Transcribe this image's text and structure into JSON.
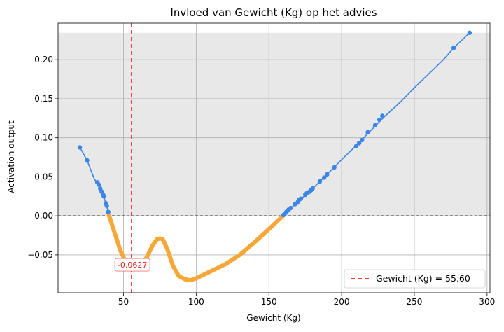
{
  "chart_data": {
    "type": "line",
    "title": "Invloed van Gewicht (Kg) op het advies",
    "xlabel": "Gewicht (Kg)",
    "ylabel": "Activation output",
    "xlim": [
      5,
      302
    ],
    "ylim": [
      -0.0985,
      0.2468
    ],
    "x_ticks": [
      50,
      100,
      150,
      200,
      250,
      300
    ],
    "y_ticks": [
      -0.05,
      0.0,
      0.05,
      0.1,
      0.15,
      0.2
    ],
    "x_tick_labels": [
      "50",
      "100",
      "150",
      "200",
      "250",
      "300"
    ],
    "y_tick_labels": [
      "−0.05",
      "0.00",
      "0.05",
      "0.10",
      "0.15",
      "0.20"
    ],
    "grid": true,
    "legend_position": "bottom-right",
    "shaded_band": {
      "y_from": 0.0,
      "y_to": 0.2344,
      "color": "#e8e8e8"
    },
    "zero_line": {
      "y": 0.0,
      "style": "dashed",
      "color": "#000000"
    },
    "reference_line": {
      "x": 55.6,
      "style": "dashed",
      "color": "#e8201c",
      "legend": "Gewicht (Kg) = 55.60"
    },
    "annotation": {
      "x": 55.6,
      "y": -0.0627,
      "text": "-0.0627",
      "color": "#e8201c"
    },
    "series": [
      {
        "color_positive": "#3b86e4",
        "color_negative": "#f6a73a",
        "curve": [
          [
            20,
            0.0877
          ],
          [
            25,
            0.071
          ],
          [
            30,
            0.047
          ],
          [
            33,
            0.04
          ],
          [
            36,
            0.027
          ],
          [
            38,
            0.015
          ],
          [
            39.5,
            0.005
          ],
          [
            40,
            0.001
          ],
          [
            42,
            -0.011
          ],
          [
            45,
            -0.028
          ],
          [
            48,
            -0.045
          ],
          [
            51,
            -0.057
          ],
          [
            54,
            -0.063
          ],
          [
            55.6,
            -0.0627
          ],
          [
            58,
            -0.066
          ],
          [
            62,
            -0.063
          ],
          [
            66,
            -0.053
          ],
          [
            70,
            -0.038
          ],
          [
            73,
            -0.03
          ],
          [
            75,
            -0.029
          ],
          [
            77,
            -0.03
          ],
          [
            80,
            -0.042
          ],
          [
            84,
            -0.064
          ],
          [
            88,
            -0.077
          ],
          [
            92,
            -0.081
          ],
          [
            96,
            -0.0825
          ],
          [
            100,
            -0.08
          ],
          [
            110,
            -0.071
          ],
          [
            120,
            -0.062
          ],
          [
            130,
            -0.05
          ],
          [
            140,
            -0.034
          ],
          [
            150,
            -0.017
          ],
          [
            158,
            -0.003
          ],
          [
            160,
            0.001
          ],
          [
            170,
            0.018
          ],
          [
            180,
            0.035
          ],
          [
            190,
            0.053
          ],
          [
            200,
            0.072
          ],
          [
            210,
            0.09
          ],
          [
            220,
            0.109
          ],
          [
            230,
            0.128
          ],
          [
            240,
            0.145
          ],
          [
            250,
            0.164
          ],
          [
            260,
            0.182
          ],
          [
            270,
            0.2
          ],
          [
            277,
            0.215
          ],
          [
            288,
            0.2344
          ]
        ],
        "markers": [
          [
            20,
            0.0877
          ],
          [
            25,
            0.071
          ],
          [
            32,
            0.043
          ],
          [
            33,
            0.04
          ],
          [
            34,
            0.035
          ],
          [
            35,
            0.031
          ],
          [
            36,
            0.027
          ],
          [
            36.5,
            0.025
          ],
          [
            38,
            0.016
          ],
          [
            38.5,
            0.013
          ],
          [
            39.5,
            0.005
          ],
          [
            160,
            0.001
          ],
          [
            161,
            0.003
          ],
          [
            162,
            0.005
          ],
          [
            163,
            0.007
          ],
          [
            164,
            0.009
          ],
          [
            165,
            0.01
          ],
          [
            168,
            0.015
          ],
          [
            170,
            0.018
          ],
          [
            171,
            0.021
          ],
          [
            172,
            0.022
          ],
          [
            175,
            0.027
          ],
          [
            176,
            0.029
          ],
          [
            178,
            0.031
          ],
          [
            179,
            0.033
          ],
          [
            180,
            0.035
          ],
          [
            185,
            0.044
          ],
          [
            188,
            0.049
          ],
          [
            190,
            0.053
          ],
          [
            195,
            0.062
          ],
          [
            210,
            0.089
          ],
          [
            212,
            0.093
          ],
          [
            214,
            0.097
          ],
          [
            218,
            0.107
          ],
          [
            223,
            0.116
          ],
          [
            226,
            0.123
          ],
          [
            228,
            0.128
          ],
          [
            277,
            0.215
          ],
          [
            288,
            0.2344
          ]
        ]
      }
    ]
  }
}
